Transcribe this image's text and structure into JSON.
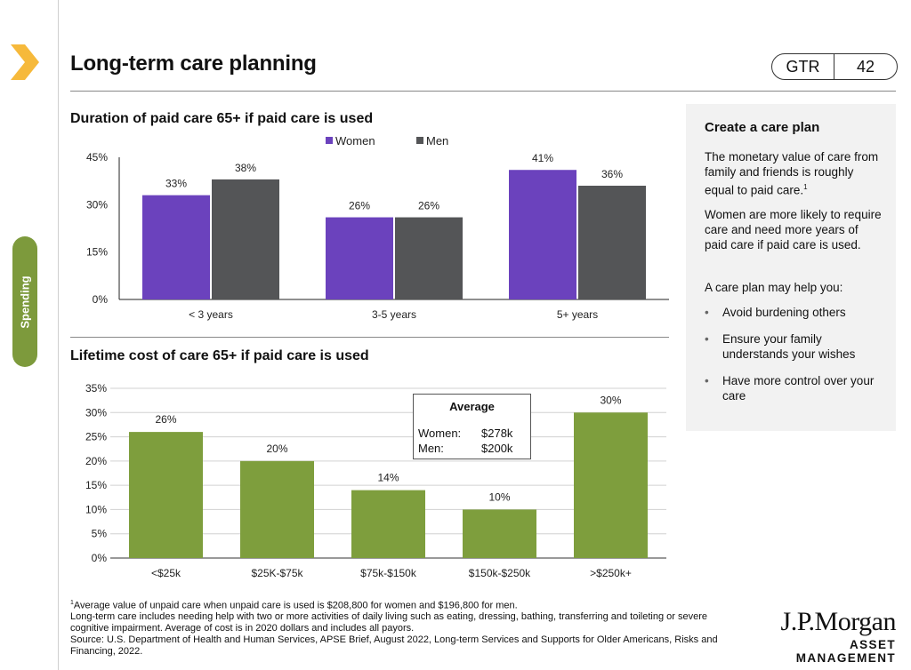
{
  "header": {
    "title": "Long-term care planning",
    "badge_left": "GTR",
    "badge_right": "42"
  },
  "side_tab": {
    "label": "Spending"
  },
  "colors": {
    "women": "#6b42bd",
    "men": "#545557",
    "cost": "#7e9e3d",
    "accent": "#f6b93b",
    "tab": "#7d9a3c"
  },
  "chart_data": [
    {
      "type": "bar",
      "title": "Duration of paid care 65+ if paid care is used",
      "categories": [
        "< 3 years",
        "3-5 years",
        "5+ years"
      ],
      "series": [
        {
          "name": "Women",
          "values": [
            33,
            26,
            41
          ],
          "labels": [
            "33%",
            "26%",
            "41%"
          ]
        },
        {
          "name": "Men",
          "values": [
            38,
            26,
            36
          ],
          "labels": [
            "38%",
            "26%",
            "36%"
          ]
        }
      ],
      "yticks": [
        "0%",
        "15%",
        "30%",
        "45%"
      ],
      "ylim": [
        0,
        45
      ],
      "legend": "top-center",
      "grid": false
    },
    {
      "type": "bar",
      "title": "Lifetime cost of care 65+ if paid care is used",
      "categories": [
        "<$25k",
        "$25K-$75k",
        "$75k-$150k",
        "$150k-$250k",
        ">$250k+"
      ],
      "values": [
        26,
        20,
        14,
        10,
        30
      ],
      "labels": [
        "26%",
        "20%",
        "14%",
        "10%",
        "30%"
      ],
      "yticks": [
        "0%",
        "5%",
        "10%",
        "15%",
        "20%",
        "25%",
        "30%",
        "35%"
      ],
      "ylim": [
        0,
        35
      ],
      "grid": true,
      "annotation": {
        "title": "Average",
        "rows": [
          {
            "label": "Women:",
            "value": "$278k"
          },
          {
            "label": "Men:",
            "value": "$200k"
          }
        ]
      }
    }
  ],
  "panel": {
    "title": "Create a care plan",
    "para1": "The monetary value of care from family and friends is roughly equal to paid care.",
    "para1_sup": "1",
    "para2": "Women are more likely to require care and need more years of paid care if paid care is used.",
    "para3": "A care plan may help you:",
    "bullets": [
      "Avoid burdening others",
      "Ensure your family understands your wishes",
      "Have more control over your care"
    ]
  },
  "footnotes": {
    "line1_sup": "1",
    "line1": "Average value of unpaid care when unpaid care is used is $208,800 for women and $196,800 for men.",
    "line2": "Long-term care includes needing help with two or more activities of daily living such as eating, dressing, bathing, transferring and toileting or severe cognitive impairment. Average of cost is in 2020 dollars and includes all payors.",
    "line3": "Source: U.S. Department of Health and Human Services, APSE Brief, August 2022, Long-term Services and Supports for Older Americans, Risks and Financing, 2022."
  },
  "logo": {
    "brand": "J.P.Morgan",
    "sub": "ASSET MANAGEMENT"
  }
}
